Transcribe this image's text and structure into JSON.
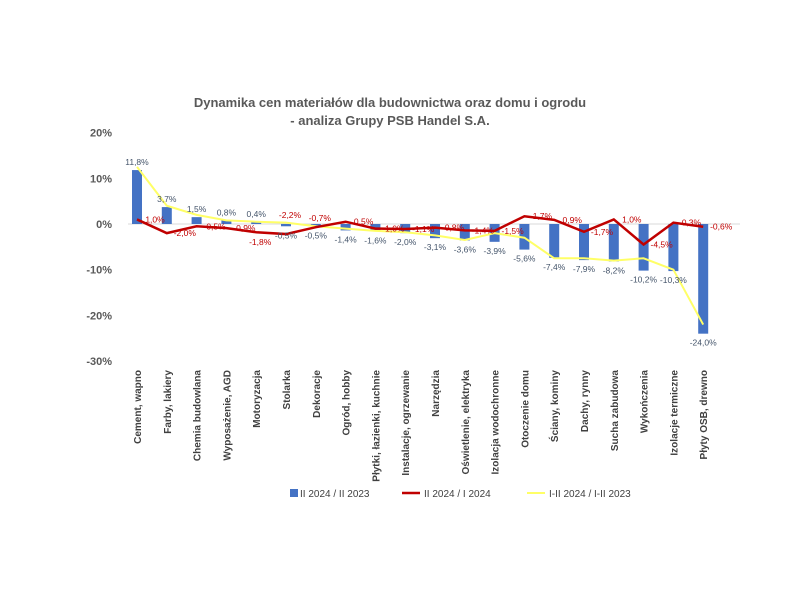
{
  "chart_data": {
    "type": "bar",
    "title": "Dynamika cen materiałów dla budownictwa oraz domu i ogrodu",
    "subtitle": "- analiza Grupy PSB Handel S.A.",
    "ylim": [
      -30,
      20
    ],
    "yticks": [
      "20%",
      "10%",
      "0%",
      "-10%",
      "-20%",
      "-30%"
    ],
    "ytick_values": [
      20,
      10,
      0,
      -10,
      -20,
      -30
    ],
    "grid": false,
    "legend_position": "bottom",
    "categories": [
      "Cement, wapno",
      "Farby, lakiery",
      "Chemia budowlana",
      "Wyposażenie, AGD",
      "Motoryzacja",
      "Stolarka",
      "Dekoracje",
      "Ogród, hobby",
      "Płytki, łazienki, kuchnie",
      "Instalacje, ogrzewanie",
      "Narzędzia",
      "Oświetlenie, elektryka",
      "Izolacja wodochronne",
      "Otoczenie domu",
      "Ściany, kominy",
      "Dachy, rynny",
      "Sucha zabudowa",
      "Wykończenia",
      "Izolacje termiczne",
      "Płyty OSB, drewno"
    ],
    "series": [
      {
        "name": "II 2024 / II 2023",
        "type": "bar",
        "color": "#4472C4",
        "values": [
          11.8,
          3.7,
          1.5,
          0.8,
          0.4,
          -0.5,
          -0.5,
          -1.4,
          -1.6,
          -2.0,
          -3.1,
          -3.6,
          -3.9,
          -5.6,
          -7.4,
          -7.9,
          -8.2,
          -10.2,
          -10.3,
          -24.0
        ],
        "labels": [
          "11,8%",
          "3,7%",
          "1,5%",
          "0,8%",
          "0,4%",
          "-0,5%",
          "-0,5%",
          "-1,4%",
          "-1,6%",
          "-2,0%",
          "-3,1%",
          "-3,6%",
          "-3,9%",
          "-5,6%",
          "-7,4%",
          "-7,9%",
          "-8,2%",
          "-10,2%",
          "-10,3%",
          "-24,0%"
        ]
      },
      {
        "name": "II 2024 / I 2024",
        "type": "line",
        "color": "#C00000",
        "values": [
          1.0,
          -2.0,
          -0.5,
          -0.9,
          -1.8,
          -2.2,
          -0.7,
          0.5,
          -1.0,
          -1.1,
          -0.8,
          -1.4,
          -1.5,
          1.7,
          0.9,
          -1.7,
          1.0,
          -4.5,
          0.3,
          -0.6
        ],
        "labels": [
          "1,0%",
          "-2,0%",
          "-0,5%",
          "-0,9%",
          "-1,8%",
          "-2,2%",
          "-0,7%",
          "0,5%",
          "-1,0%",
          "-1,1%",
          "-0,8%",
          "-1,4%",
          "-1,5%",
          "1,7%",
          "0,9%",
          "-1,7%",
          "1,0%",
          "-4,5%",
          "0,3%",
          "-0,6%"
        ]
      },
      {
        "name": "I-II 2024 / I-II 2023",
        "type": "line",
        "color": "#FFFF66",
        "values": [
          12.5,
          4.0,
          2.0,
          0.8,
          0.5,
          0.3,
          -0.5,
          -1.0,
          -1.5,
          -1.8,
          -2.5,
          -3.5,
          -2.0,
          -3.0,
          -7.5,
          -7.5,
          -8.0,
          -7.5,
          -10.0,
          -22.0
        ]
      }
    ]
  }
}
